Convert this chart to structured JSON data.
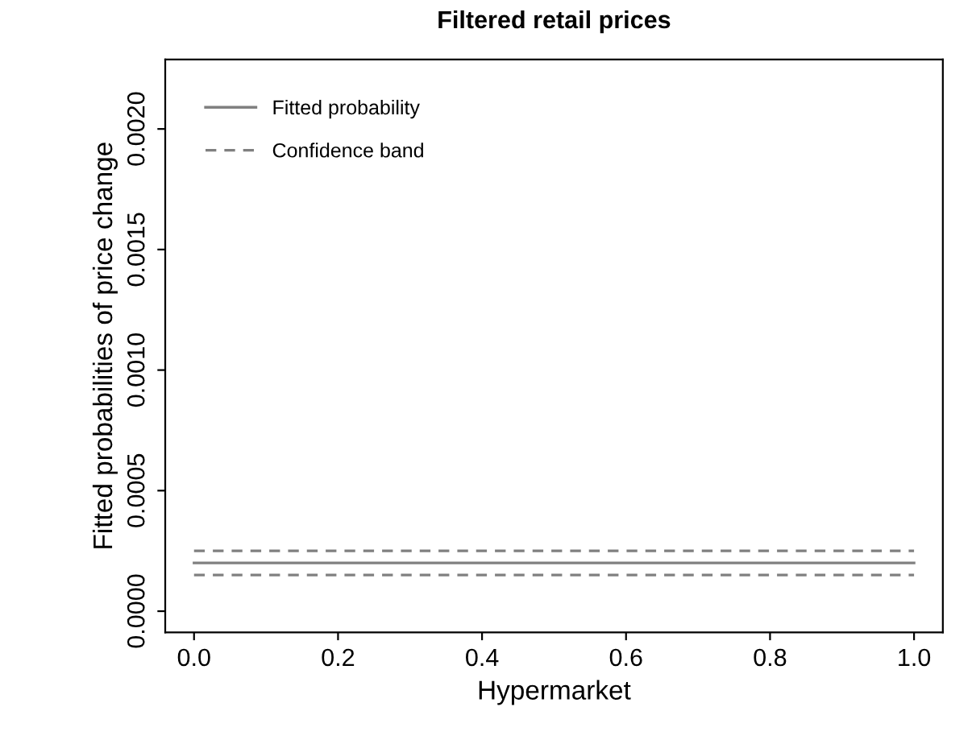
{
  "chart_data": {
    "type": "line",
    "title": "Filtered retail prices",
    "xlabel": "Hypermarket",
    "ylabel": "Fitted probabilities of price change",
    "x": [
      0,
      1
    ],
    "series": [
      {
        "name": "Fitted probability",
        "color": "#808080",
        "line_style": "solid",
        "values": [
          0.0002,
          0.0002
        ]
      },
      {
        "name": "Confidence band",
        "color": "#808080",
        "line_style": "dashed",
        "values": [
          0.00025,
          0.00025
        ]
      },
      {
        "color": "#808080",
        "line_style": "dashed",
        "values": [
          0.00015,
          0.00015
        ]
      }
    ],
    "xlim": [
      -0.04,
      1.04
    ],
    "ylim": [
      -8.8e-05,
      0.002288
    ],
    "xticks": [
      {
        "value": 0,
        "label": "0.0"
      },
      {
        "value": 0.2,
        "label": "0.2"
      },
      {
        "value": 0.4,
        "label": "0.4"
      },
      {
        "value": 0.6,
        "label": "0.6"
      },
      {
        "value": 0.8,
        "label": "0.8"
      },
      {
        "value": 1,
        "label": "1.0"
      }
    ],
    "yticks": [
      {
        "value": 0,
        "label": "0.0000"
      },
      {
        "value": 0.0005,
        "label": "0.0005"
      },
      {
        "value": 0.001,
        "label": "0.0010"
      },
      {
        "value": 0.0015,
        "label": "0.0015"
      },
      {
        "value": 0.002,
        "label": "0.0020"
      }
    ],
    "grid": false,
    "legend": "top left"
  }
}
